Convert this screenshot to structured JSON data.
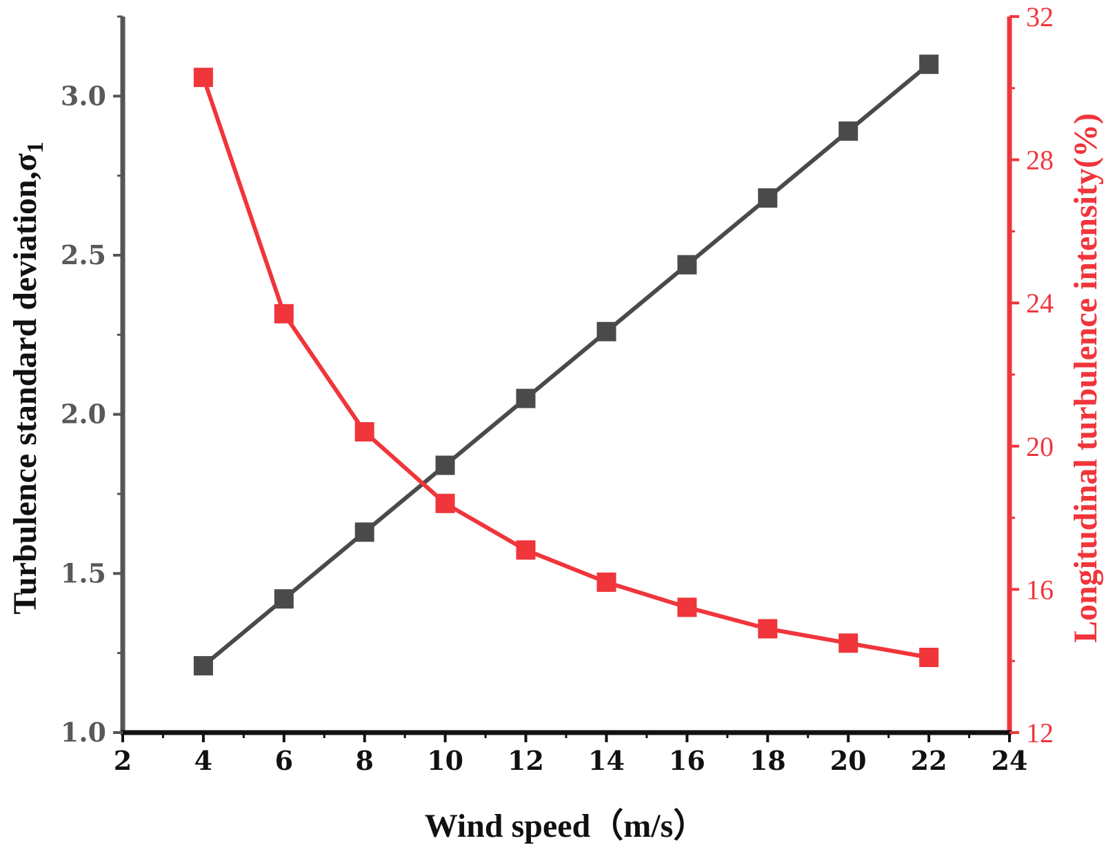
{
  "chart_data": {
    "type": "line",
    "x": [
      4,
      6,
      8,
      10,
      12,
      14,
      16,
      18,
      20,
      22
    ],
    "xlim": [
      2,
      24
    ],
    "xticks": [
      "2",
      "4",
      "6",
      "8",
      "10",
      "12",
      "14",
      "16",
      "18",
      "20",
      "22",
      "24"
    ],
    "xlabel": "Wind speed（m/s）",
    "left_axis": {
      "label": "Turbulence standard deviation,σ",
      "label_subscript": "1",
      "ylim": [
        1.0,
        3.25
      ],
      "ticks": [
        "1.0",
        "1.5",
        "2.0",
        "2.5",
        "3.0"
      ],
      "color": "#555555"
    },
    "right_axis": {
      "label": "Longitudinal turbulence intensity(%)",
      "ylim": [
        12,
        32
      ],
      "ticks": [
        "12",
        "16",
        "20",
        "24",
        "28",
        "32"
      ],
      "color": "#f0353b"
    },
    "series": [
      {
        "name": "Turbulence standard deviation",
        "axis": "left",
        "color": "#4a4a4a",
        "marker": "square",
        "values": [
          1.21,
          1.42,
          1.63,
          1.84,
          2.05,
          2.26,
          2.47,
          2.68,
          2.89,
          3.1
        ]
      },
      {
        "name": "Longitudinal turbulence intensity",
        "axis": "right",
        "color": "#f0353b",
        "marker": "square",
        "values": [
          30.3,
          23.7,
          20.4,
          18.4,
          17.1,
          16.2,
          15.5,
          14.9,
          14.5,
          14.1
        ]
      }
    ]
  }
}
